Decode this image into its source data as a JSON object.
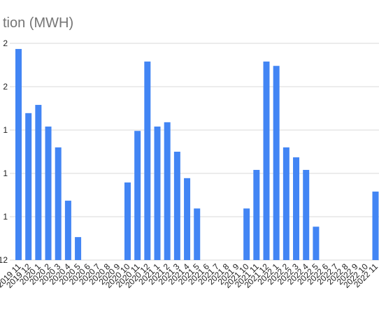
{
  "chart_data": {
    "type": "bar",
    "title": "tion (MWH)",
    "categories": [
      "2019 11",
      "2019 12",
      "2020 1",
      "2020 2",
      "2020 3",
      "2020 4",
      "2020 5",
      "2020 6",
      "2020 7",
      "2020 8",
      "2020 9",
      "2020 10",
      "2020 11",
      "2020 12",
      "2021 1",
      "2021 2",
      "2021 3",
      "2021 4",
      "2021 5",
      "2021 6",
      "2021 7",
      "2021 8",
      "2021 9",
      "2021 10",
      "2021 11",
      "2021 12",
      "2022 1",
      "2022 2",
      "2022 3",
      "2022 4",
      "2022 5",
      "2022 6",
      "2022 7",
      "2022 8",
      "2022 9",
      "2022 10",
      "2022 11"
    ],
    "values": [
      4.87,
      3.39,
      3.58,
      3.08,
      2.6,
      1.37,
      0.53,
      0,
      0,
      0,
      0,
      1.79,
      2.98,
      4.58,
      3.08,
      3.18,
      2.5,
      1.89,
      1.19,
      0,
      0,
      0,
      0,
      1.19,
      2.08,
      4.58,
      4.48,
      2.6,
      2.37,
      2.08,
      0.77,
      0,
      0,
      0,
      0,
      0,
      1.58
    ],
    "color": "#4285f4",
    "ylim": [
      0,
      5
    ],
    "yticks": [
      {
        "value": 0,
        "label": "12"
      },
      {
        "value": 1,
        "label": "1"
      },
      {
        "value": 2,
        "label": "1"
      },
      {
        "value": 3,
        "label": "1"
      },
      {
        "value": 4,
        "label": "2"
      },
      {
        "value": 5,
        "label": "2"
      }
    ],
    "grid": true
  }
}
